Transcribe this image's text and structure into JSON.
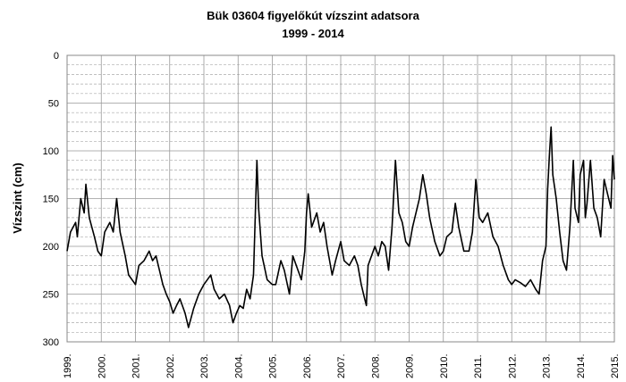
{
  "chart_data": {
    "type": "line",
    "title": "Bük 03604 figyelőkút vízszint adatsora",
    "subtitle": "1999 - 2014",
    "y_label": "Vízszint (cm)",
    "y_inverted": true,
    "grid": true,
    "ylim": [
      0,
      300
    ],
    "yticks": [
      0,
      50,
      100,
      150,
      200,
      250,
      300
    ],
    "yticks_minor": [
      10,
      20,
      30,
      40,
      60,
      70,
      80,
      90,
      110,
      120,
      130,
      140,
      160,
      170,
      180,
      190,
      210,
      220,
      230,
      240,
      260,
      270,
      280,
      290
    ],
    "xlim": [
      1999,
      2015
    ],
    "xticks": [
      {
        "value": 1999,
        "label": "1999."
      },
      {
        "value": 2000,
        "label": "2000."
      },
      {
        "value": 2001,
        "label": "2001."
      },
      {
        "value": 2002,
        "label": "2002."
      },
      {
        "value": 2003,
        "label": "2003."
      },
      {
        "value": 2004,
        "label": "2004."
      },
      {
        "value": 2005,
        "label": "2005."
      },
      {
        "value": 2006,
        "label": "2006."
      },
      {
        "value": 2007,
        "label": "2007."
      },
      {
        "value": 2008,
        "label": "2008."
      },
      {
        "value": 2009,
        "label": "2009."
      },
      {
        "value": 2010,
        "label": "2010."
      },
      {
        "value": 2011,
        "label": "2011."
      },
      {
        "value": 2012,
        "label": "2012."
      },
      {
        "value": 2013,
        "label": "2013."
      },
      {
        "value": 2014,
        "label": "2014."
      },
      {
        "value": 2015,
        "label": "2015."
      }
    ],
    "color": "#000000",
    "x": [
      1999.0,
      1999.1,
      1999.25,
      1999.3,
      1999.4,
      1999.5,
      1999.55,
      1999.65,
      1999.8,
      1999.9,
      2000.0,
      2000.1,
      2000.25,
      2000.35,
      2000.45,
      2000.55,
      2000.7,
      2000.8,
      2000.9,
      2001.0,
      2001.1,
      2001.25,
      2001.4,
      2001.5,
      2001.6,
      2001.7,
      2001.8,
      2001.9,
      2002.0,
      2002.1,
      2002.2,
      2002.3,
      2002.45,
      2002.55,
      2002.7,
      2002.85,
      2003.0,
      2003.1,
      2003.2,
      2003.3,
      2003.45,
      2003.6,
      2003.75,
      2003.85,
      2003.95,
      2004.05,
      2004.15,
      2004.25,
      2004.35,
      2004.45,
      2004.55,
      2004.6,
      2004.7,
      2004.85,
      2005.0,
      2005.1,
      2005.25,
      2005.35,
      2005.5,
      2005.6,
      2005.75,
      2005.85,
      2005.95,
      2006.0,
      2006.05,
      2006.15,
      2006.3,
      2006.4,
      2006.5,
      2006.6,
      2006.75,
      2006.85,
      2007.0,
      2007.1,
      2007.25,
      2007.4,
      2007.5,
      2007.6,
      2007.7,
      2007.75,
      2007.8,
      2007.9,
      2008.0,
      2008.1,
      2008.2,
      2008.3,
      2008.4,
      2008.5,
      2008.6,
      2008.7,
      2008.8,
      2008.9,
      2009.0,
      2009.1,
      2009.2,
      2009.3,
      2009.4,
      2009.5,
      2009.6,
      2009.75,
      2009.9,
      2010.0,
      2010.1,
      2010.25,
      2010.35,
      2010.45,
      2010.6,
      2010.75,
      2010.85,
      2010.95,
      2011.05,
      2011.15,
      2011.3,
      2011.45,
      2011.6,
      2011.75,
      2011.9,
      2012.0,
      2012.1,
      2012.25,
      2012.4,
      2012.55,
      2012.7,
      2012.8,
      2012.9,
      2013.0,
      2013.05,
      2013.1,
      2013.15,
      2013.2,
      2013.3,
      2013.4,
      2013.5,
      2013.6,
      2013.7,
      2013.8,
      2013.85,
      2013.95,
      2014.0,
      2014.1,
      2014.15,
      2014.2,
      2014.3,
      2014.4,
      2014.5,
      2014.6,
      2014.7,
      2014.8,
      2014.9,
      2014.95,
      2015.0
    ],
    "values": [
      205,
      185,
      175,
      190,
      150,
      165,
      135,
      170,
      190,
      205,
      210,
      185,
      175,
      185,
      150,
      185,
      210,
      230,
      235,
      240,
      220,
      215,
      205,
      215,
      210,
      225,
      240,
      250,
      258,
      270,
      262,
      255,
      270,
      285,
      265,
      250,
      240,
      235,
      230,
      245,
      255,
      250,
      262,
      280,
      270,
      262,
      265,
      245,
      255,
      230,
      110,
      160,
      210,
      235,
      240,
      240,
      215,
      225,
      250,
      210,
      225,
      235,
      205,
      165,
      145,
      180,
      165,
      185,
      175,
      200,
      230,
      215,
      195,
      215,
      220,
      210,
      220,
      240,
      255,
      262,
      220,
      210,
      200,
      210,
      195,
      200,
      225,
      180,
      110,
      165,
      175,
      195,
      200,
      180,
      165,
      150,
      125,
      145,
      170,
      195,
      210,
      205,
      190,
      185,
      155,
      180,
      205,
      205,
      185,
      130,
      170,
      175,
      165,
      190,
      200,
      220,
      235,
      240,
      235,
      238,
      242,
      235,
      245,
      250,
      215,
      200,
      140,
      105,
      75,
      125,
      150,
      185,
      215,
      225,
      180,
      110,
      160,
      175,
      125,
      110,
      170,
      155,
      110,
      160,
      170,
      190,
      130,
      145,
      160,
      105,
      130
    ]
  }
}
